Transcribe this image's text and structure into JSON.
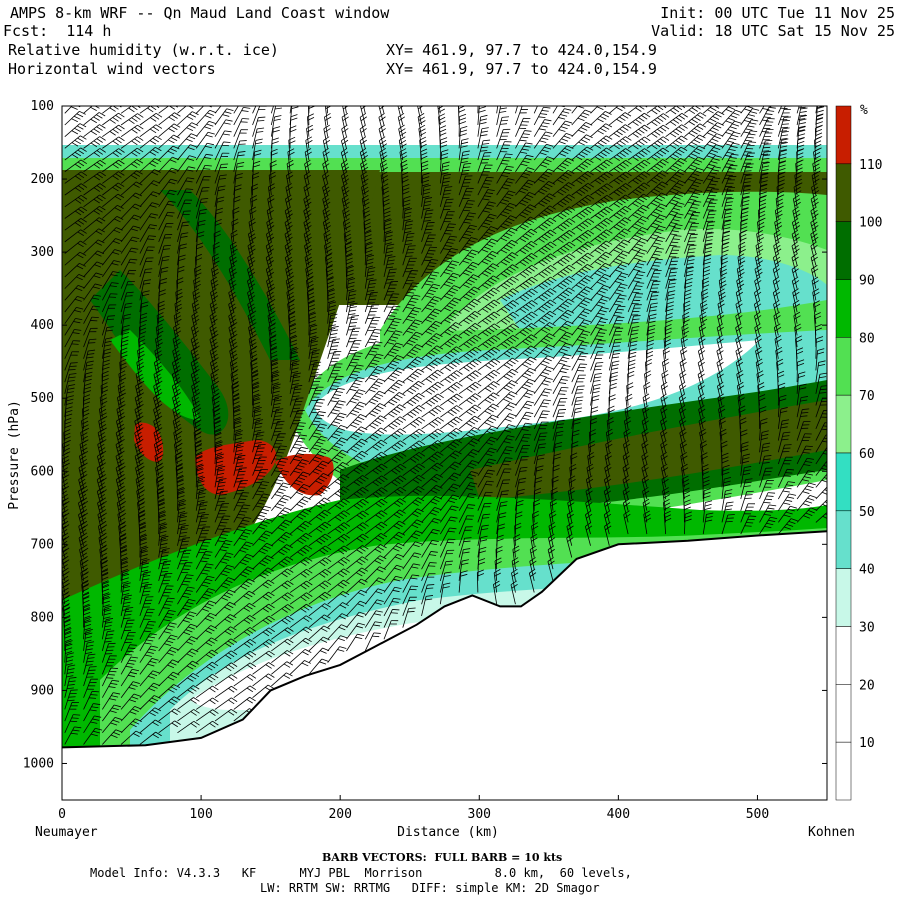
{
  "header": {
    "title": "AMPS 8-km WRF -- Qn Maud Land Coast window",
    "forecast": "Fcst:  114 h",
    "field1": "Relative humidity (w.r.t. ice)",
    "field2": "Horizontal wind vectors",
    "xy1": "XY= 461.9, 97.7 to 424.0,154.9",
    "xy2": "XY= 461.9, 97.7 to 424.0,154.9",
    "init": "Init: 00 UTC Tue 11 Nov 25",
    "valid": "Valid: 18 UTC Sat 15 Nov 25"
  },
  "chart_data": {
    "type": "heatmap",
    "title": "Relative humidity (w.r.t. ice) cross section with horizontal wind vectors",
    "xlabel": "Distance (km)",
    "ylabel": "Pressure (hPa)",
    "xlim": [
      0,
      550
    ],
    "ylim": [
      1050,
      100
    ],
    "x_ticks": [
      0,
      100,
      200,
      300,
      400,
      500
    ],
    "y_ticks": [
      100,
      200,
      300,
      400,
      500,
      600,
      700,
      800,
      900,
      1000
    ],
    "left_endpoint": "Neumayer",
    "right_endpoint": "Kohnen",
    "colorbar": {
      "unit": "%",
      "levels": [
        10,
        20,
        30,
        40,
        50,
        60,
        70,
        80,
        90,
        100,
        110
      ],
      "colors": [
        "#ffffff",
        "#ffffff",
        "#ffffff",
        "#c8f8e8",
        "#66e0cc",
        "#33dfc2",
        "#8cf08c",
        "#52e052",
        "#00b800",
        "#006e00",
        "#3f5a00",
        "#c81e00"
      ]
    },
    "terrain_surface": [
      {
        "km": 0,
        "hPa": 978
      },
      {
        "km": 60,
        "hPa": 975
      },
      {
        "km": 100,
        "hPa": 965
      },
      {
        "km": 130,
        "hPa": 940
      },
      {
        "km": 150,
        "hPa": 900
      },
      {
        "km": 175,
        "hPa": 880
      },
      {
        "km": 200,
        "hPa": 865
      },
      {
        "km": 225,
        "hPa": 840
      },
      {
        "km": 255,
        "hPa": 810
      },
      {
        "km": 275,
        "hPa": 785
      },
      {
        "km": 295,
        "hPa": 770
      },
      {
        "km": 315,
        "hPa": 785
      },
      {
        "km": 330,
        "hPa": 785
      },
      {
        "km": 345,
        "hPa": 765
      },
      {
        "km": 370,
        "hPa": 720
      },
      {
        "km": 400,
        "hPa": 700
      },
      {
        "km": 450,
        "hPa": 695
      },
      {
        "km": 500,
        "hPa": 688
      },
      {
        "km": 550,
        "hPa": 682
      }
    ],
    "features": {
      "dry_tongue_hPa": [
        470,
        530
      ],
      "saturated_patches_km": [
        [
          50,
          70
        ],
        [
          100,
          145
        ],
        [
          150,
          190
        ]
      ],
      "saturated_patches_hPa": [
        540,
        630
      ]
    }
  },
  "footer": {
    "barb_note": "BARB VECTORS:  FULL BARB = 10 kts",
    "model_info": "Model Info: V4.3.3   KF      MYJ PBL  Morrison          8.0 km,  60 levels,",
    "model_info2": "LW: RRTM SW: RRTMG   DIFF: simple KM: 2D Smagor"
  }
}
